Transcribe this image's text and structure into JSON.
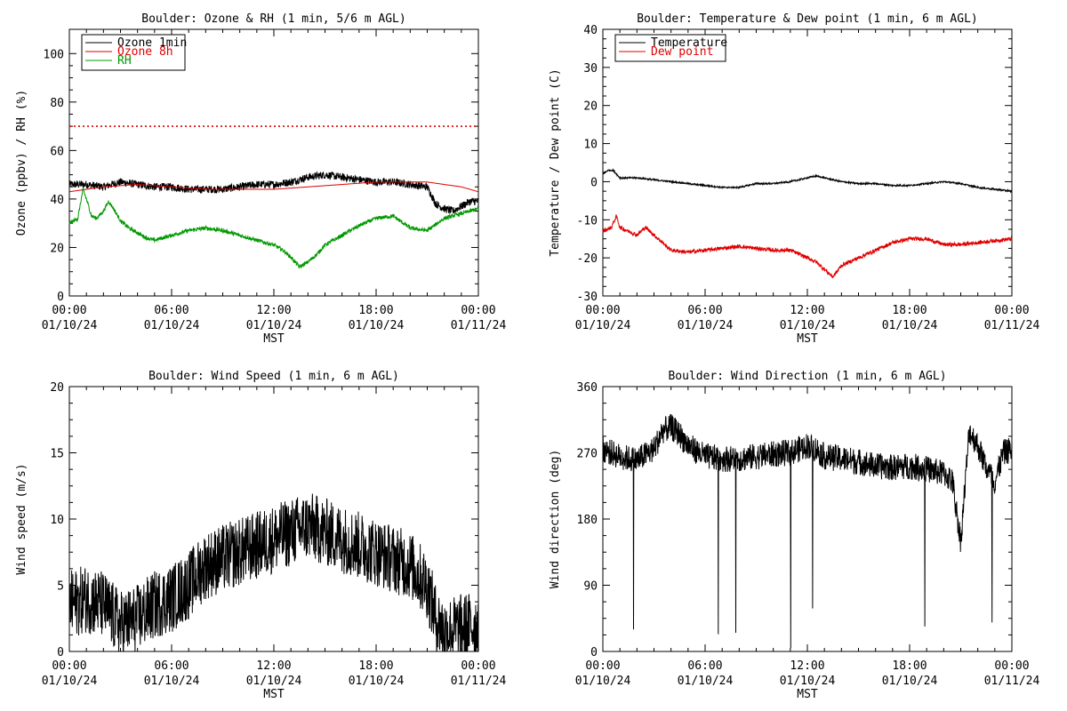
{
  "chart_data": [
    {
      "type": "line",
      "title": "Boulder: Ozone & RH (1 min, 5/6 m AGL)",
      "xlabel": "MST",
      "ylabel": "Ozone (ppbv) / RH (%)",
      "xlim_hours": [
        0,
        24
      ],
      "ylim": [
        0,
        110
      ],
      "yticks": [
        0,
        20,
        40,
        60,
        80,
        100
      ],
      "xticks": [
        {
          "hour": 0,
          "time": "00:00",
          "date": "01/10/24"
        },
        {
          "hour": 6,
          "time": "06:00",
          "date": "01/10/24"
        },
        {
          "hour": 12,
          "time": "12:00",
          "date": "01/10/24"
        },
        {
          "hour": 18,
          "time": "18:00",
          "date": "01/10/24"
        },
        {
          "hour": 24,
          "time": "00:00",
          "date": "01/11/24"
        }
      ],
      "legend": {
        "placement": "top-left",
        "entries": [
          {
            "name": "Ozone 1min",
            "color": "#000000"
          },
          {
            "name": "Ozone 8h",
            "color": "#e00000"
          },
          {
            "name": "RH",
            "color": "#009900"
          }
        ]
      },
      "reference_line": {
        "y": 70,
        "style": "dotted",
        "color": "#e00000"
      },
      "series": [
        {
          "name": "Ozone 1min",
          "color": "#000000",
          "noise": 1.6,
          "x": [
            0,
            1,
            2,
            3,
            4,
            5,
            6,
            7,
            8,
            9,
            10,
            11,
            12,
            13,
            14,
            15,
            16,
            17,
            18,
            19,
            20,
            21,
            21.5,
            22,
            22.5,
            23,
            23.5,
            24
          ],
          "y": [
            46,
            46,
            45,
            47,
            46,
            45,
            45,
            44,
            44,
            44,
            45,
            46,
            46,
            47,
            49,
            50,
            49,
            48,
            47,
            47,
            46,
            45,
            38,
            36,
            35,
            37,
            39,
            39
          ]
        },
        {
          "name": "Ozone 8h",
          "color": "#e00000",
          "noise": 0,
          "x": [
            0,
            2,
            4,
            6,
            8,
            10,
            12,
            14,
            16,
            18,
            20,
            21,
            22,
            23,
            24
          ],
          "y": [
            43,
            45,
            46,
            45,
            44,
            44,
            44,
            45,
            46,
            47,
            47,
            47,
            46,
            45,
            43
          ]
        },
        {
          "name": "RH",
          "color": "#009900",
          "noise": 0.8,
          "x": [
            0,
            0.5,
            0.8,
            1.0,
            1.3,
            1.6,
            2.0,
            2.3,
            2.6,
            3.0,
            3.5,
            4.0,
            4.5,
            5.0,
            6.0,
            7.0,
            8.0,
            9.0,
            10.0,
            11.0,
            12.0,
            12.5,
            13.0,
            13.5,
            14.0,
            14.5,
            15.0,
            16.0,
            17.0,
            18.0,
            19.0,
            20.0,
            21.0,
            22.0,
            23.0,
            24.0
          ],
          "y": [
            30,
            32,
            44,
            40,
            33,
            32,
            35,
            39,
            36,
            31,
            28,
            26,
            24,
            23,
            25,
            27,
            28,
            27,
            25,
            23,
            21,
            19,
            16,
            12,
            14,
            17,
            21,
            25,
            29,
            32,
            33,
            28,
            27,
            32,
            34,
            36
          ]
        }
      ]
    },
    {
      "type": "line",
      "title": "Boulder: Temperature & Dew point (1 min, 6 m AGL)",
      "xlabel": "MST",
      "ylabel": "Temperature / Dew point (C)",
      "xlim_hours": [
        0,
        24
      ],
      "ylim": [
        -30,
        40
      ],
      "yticks": [
        -30,
        -20,
        -10,
        0,
        10,
        20,
        30,
        40
      ],
      "xticks": [
        {
          "hour": 0,
          "time": "00:00",
          "date": "01/10/24"
        },
        {
          "hour": 6,
          "time": "06:00",
          "date": "01/10/24"
        },
        {
          "hour": 12,
          "time": "12:00",
          "date": "01/10/24"
        },
        {
          "hour": 18,
          "time": "18:00",
          "date": "01/10/24"
        },
        {
          "hour": 24,
          "time": "00:00",
          "date": "01/11/24"
        }
      ],
      "legend": {
        "placement": "top-left",
        "entries": [
          {
            "name": "Temperature",
            "color": "#000000"
          },
          {
            "name": "Dew point",
            "color": "#e00000"
          }
        ]
      },
      "series": [
        {
          "name": "Temperature",
          "color": "#000000",
          "noise": 0.2,
          "x": [
            0,
            0.3,
            0.6,
            1,
            2,
            3,
            4,
            5,
            6,
            7,
            8,
            9,
            10,
            11,
            12,
            12.5,
            13,
            14,
            15,
            16,
            17,
            18,
            19,
            20,
            21,
            22,
            23,
            24
          ],
          "y": [
            2,
            3,
            3,
            1,
            1,
            0.5,
            0,
            -0.5,
            -1,
            -1.5,
            -1.5,
            -0.5,
            -0.5,
            0,
            1,
            1.5,
            1,
            0,
            -0.5,
            -0.5,
            -1,
            -1,
            -0.5,
            0,
            -0.5,
            -1.5,
            -2,
            -2.5
          ]
        },
        {
          "name": "Dew point",
          "color": "#e00000",
          "noise": 0.5,
          "x": [
            0,
            0.5,
            0.8,
            1,
            1.5,
            2,
            2.5,
            3,
            3.5,
            4,
            5,
            6,
            7,
            8,
            9,
            10,
            11,
            12,
            12.5,
            13,
            13.5,
            14,
            15,
            16,
            17,
            18,
            19,
            20,
            21,
            22,
            23,
            24
          ],
          "y": [
            -13,
            -12,
            -9,
            -12,
            -13,
            -14,
            -12,
            -14,
            -16,
            -18,
            -18.5,
            -18,
            -17.5,
            -17,
            -17.5,
            -18,
            -18,
            -20,
            -21,
            -23,
            -25,
            -22,
            -20,
            -18,
            -16,
            -15,
            -15,
            -16.5,
            -16.5,
            -16,
            -15.5,
            -15
          ]
        }
      ]
    },
    {
      "type": "line",
      "title": "Boulder: Wind Speed (1 min, 6 m AGL)",
      "xlabel": "MST",
      "ylabel": "Wind speed (m/s)",
      "xlim_hours": [
        0,
        24
      ],
      "ylim": [
        0,
        20
      ],
      "yticks": [
        0,
        5,
        10,
        15,
        20
      ],
      "xticks": [
        {
          "hour": 0,
          "time": "00:00",
          "date": "01/10/24"
        },
        {
          "hour": 6,
          "time": "06:00",
          "date": "01/10/24"
        },
        {
          "hour": 12,
          "time": "12:00",
          "date": "01/10/24"
        },
        {
          "hour": 18,
          "time": "18:00",
          "date": "01/10/24"
        },
        {
          "hour": 24,
          "time": "00:00",
          "date": "01/11/24"
        }
      ],
      "series": [
        {
          "name": "",
          "color": "#000000",
          "noise": 2.6,
          "x": [
            0,
            1,
            2,
            3,
            4,
            5,
            6,
            7,
            8,
            9,
            10,
            11,
            12,
            13,
            14,
            15,
            16,
            17,
            18,
            19,
            20,
            21,
            21.5,
            22,
            23,
            24
          ],
          "y": [
            3.5,
            4,
            3.5,
            2,
            2.5,
            3.5,
            4,
            5,
            6.5,
            7,
            7.5,
            8,
            8.5,
            9,
            9.5,
            9,
            8.5,
            8,
            7.5,
            7,
            6.5,
            5,
            2.5,
            1.5,
            1.8,
            2
          ]
        }
      ]
    },
    {
      "type": "line",
      "title": "Boulder: Wind Direction (1 min, 6 m AGL)",
      "xlabel": "MST",
      "ylabel": "Wind direction (deg)",
      "xlim_hours": [
        0,
        24
      ],
      "ylim": [
        0,
        360
      ],
      "yticks": [
        0,
        90,
        180,
        270,
        360
      ],
      "xticks": [
        {
          "hour": 0,
          "time": "00:00",
          "date": "01/10/24"
        },
        {
          "hour": 6,
          "time": "06:00",
          "date": "01/10/24"
        },
        {
          "hour": 12,
          "time": "12:00",
          "date": "01/10/24"
        },
        {
          "hour": 18,
          "time": "18:00",
          "date": "01/10/24"
        },
        {
          "hour": 24,
          "time": "00:00",
          "date": "01/11/24"
        }
      ],
      "series": [
        {
          "name": "",
          "color": "#000000",
          "noise": 18,
          "x": [
            0,
            1,
            2,
            3,
            3.5,
            4,
            4.5,
            5,
            6,
            7,
            8,
            9,
            10,
            11,
            12,
            12.5,
            13,
            14,
            15,
            16,
            17,
            18,
            19,
            20,
            20.5,
            21,
            21.5,
            22,
            22.5,
            23,
            23.5,
            24
          ],
          "y": [
            275,
            265,
            260,
            275,
            300,
            305,
            295,
            280,
            265,
            262,
            262,
            265,
            268,
            270,
            280,
            275,
            265,
            262,
            258,
            252,
            250,
            252,
            248,
            242,
            232,
            150,
            300,
            280,
            250,
            230,
            270,
            275
          ]
        }
      ]
    }
  ]
}
